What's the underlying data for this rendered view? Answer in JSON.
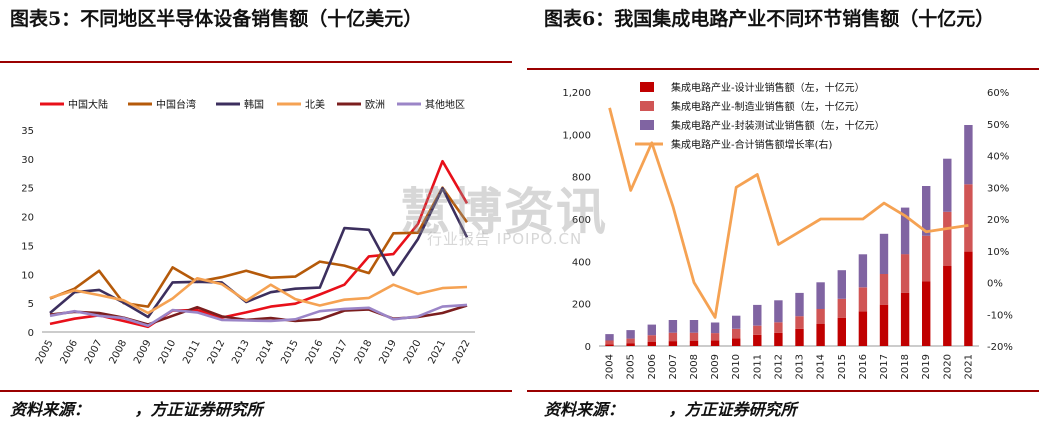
{
  "left": {
    "title": "图表5：不同地区半导体设备销售额（十亿美元）",
    "source": "资料来源：        ，方正证券研究所"
  },
  "right": {
    "title": "图表6：我国集成电路产业不同环节销售额（十亿元）",
    "source": "资料来源：        ，方正证券研究所"
  },
  "watermark": {
    "main": "慧博资讯",
    "sub": "行业报告 IPOIPO.CN"
  },
  "chart_data": [
    {
      "type": "line",
      "title": "图表5：不同地区半导体设备销售额（十亿美元）",
      "x": [
        "2005",
        "2006",
        "2007",
        "2008",
        "2009",
        "2010",
        "2011",
        "2012",
        "2013",
        "2014",
        "2015",
        "2016",
        "2017",
        "2018",
        "2019",
        "2020",
        "2021",
        "2022"
      ],
      "ylim": [
        0,
        35
      ],
      "yticks": [
        0,
        5,
        10,
        15,
        20,
        25,
        30,
        35
      ],
      "grid": false,
      "legend_position": "top",
      "series": [
        {
          "name": "中国大陆",
          "color": "#e8101a",
          "values": [
            1.4,
            2.3,
            2.9,
            1.9,
            0.9,
            3.7,
            3.8,
            2.5,
            3.4,
            4.4,
            4.9,
            6.5,
            8.2,
            13.1,
            13.5,
            18.7,
            29.6,
            22.3
          ]
        },
        {
          "name": "中国台湾",
          "color": "#b55a0a",
          "values": [
            5.8,
            7.5,
            10.6,
            5.0,
            4.4,
            11.2,
            8.7,
            9.5,
            10.6,
            9.4,
            9.6,
            12.2,
            11.5,
            10.2,
            17.1,
            17.2,
            25.0,
            19.0
          ]
        },
        {
          "name": "韩国",
          "color": "#3c2f5e",
          "values": [
            3.3,
            6.9,
            7.3,
            5.1,
            2.6,
            8.6,
            8.7,
            8.6,
            5.2,
            6.9,
            7.5,
            7.7,
            18.0,
            17.7,
            9.9,
            16.1,
            24.9,
            16.4
          ]
        },
        {
          "name": "北美",
          "color": "#f5a253",
          "values": [
            5.9,
            7.2,
            6.4,
            5.5,
            3.3,
            5.8,
            9.3,
            8.3,
            5.4,
            8.2,
            5.7,
            4.6,
            5.6,
            5.9,
            8.2,
            6.6,
            7.6,
            7.8
          ]
        },
        {
          "name": "欧洲",
          "color": "#7b1e1e",
          "values": [
            3.0,
            3.5,
            3.3,
            2.5,
            1.3,
            2.8,
            4.3,
            2.7,
            2.1,
            2.4,
            1.9,
            2.2,
            3.7,
            3.9,
            2.3,
            2.6,
            3.3,
            4.6
          ]
        },
        {
          "name": "其他地区",
          "color": "#9b85c7",
          "values": [
            2.8,
            3.6,
            2.8,
            2.4,
            1.1,
            3.8,
            3.4,
            2.1,
            2.0,
            1.9,
            2.2,
            3.6,
            4.0,
            4.2,
            2.2,
            2.7,
            4.4,
            4.7
          ]
        }
      ]
    },
    {
      "type": "bar",
      "stacked": true,
      "title": "图表6：我国集成电路产业不同环节销售额（十亿元）",
      "categories": [
        "2004",
        "2005",
        "2006",
        "2007",
        "2008",
        "2009",
        "2010",
        "2011",
        "2012",
        "2013",
        "2014",
        "2015",
        "2016",
        "2017",
        "2018",
        "2019",
        "2020",
        "2021"
      ],
      "ylim": [
        0,
        1200
      ],
      "yticks": [
        0,
        200,
        400,
        600,
        800,
        1000,
        1200
      ],
      "y2lim": [
        -20,
        60
      ],
      "y2ticks": [
        -20,
        -10,
        0,
        10,
        20,
        30,
        40,
        50,
        60
      ],
      "grid": false,
      "legend_position": "top",
      "series": [
        {
          "name": "集成电路产业-设计业销售额（左，十亿元）",
          "color": "#c00000",
          "axis": "left",
          "values": [
            8,
            12,
            19,
            23,
            24,
            27,
            36,
            53,
            62,
            81,
            104,
            133,
            164,
            195,
            252,
            306,
            378,
            446
          ]
        },
        {
          "name": "集成电路产业-制造业销售额（左，十亿元）",
          "color": "#d05555",
          "axis": "left",
          "values": [
            18,
            23,
            32,
            40,
            39,
            34,
            45,
            43,
            50,
            60,
            71,
            90,
            113,
            145,
            182,
            215,
            256,
            318
          ]
        },
        {
          "name": "集成电路产业-封装测试业销售额（左，十亿元）",
          "color": "#8064a2",
          "axis": "left",
          "values": [
            30,
            40,
            50,
            60,
            60,
            50,
            62,
            98,
            104,
            110,
            126,
            135,
            156,
            190,
            220,
            235,
            251,
            280
          ]
        },
        {
          "name": "集成电路产业-合计销售额增长率(右)",
          "color": "#f5a253",
          "type": "line",
          "axis": "right",
          "values": [
            55,
            29,
            44,
            24,
            0,
            -11,
            30,
            34,
            12,
            16,
            20,
            20,
            20,
            25,
            21,
            16,
            17,
            18
          ]
        }
      ]
    }
  ]
}
